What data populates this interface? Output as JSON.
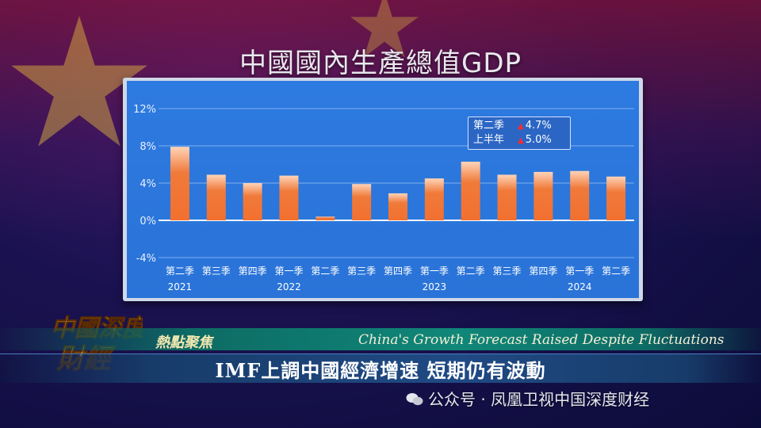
{
  "screen_title": "中國國內生產總值GDP",
  "legend": [
    {
      "label": "第二季",
      "value": "4.7%"
    },
    {
      "label": "上半年",
      "value": "5.0%"
    }
  ],
  "chart_data": {
    "type": "bar",
    "categories": [
      "第二季",
      "第三季",
      "第四季",
      "第一季",
      "第二季",
      "第三季",
      "第四季",
      "第一季",
      "第二季",
      "第三季",
      "第四季",
      "第一季",
      "第二季"
    ],
    "years": [
      {
        "label": "2021",
        "category_index": 0
      },
      {
        "label": "2022",
        "category_index": 3
      },
      {
        "label": "2023",
        "category_index": 7
      },
      {
        "label": "2024",
        "category_index": 11
      }
    ],
    "values": [
      7.9,
      4.9,
      4.0,
      4.8,
      0.4,
      3.9,
      2.9,
      4.5,
      6.3,
      4.9,
      5.2,
      5.3,
      4.7
    ],
    "yticks": [
      "12%",
      "8%",
      "4%",
      "0%",
      "-4%"
    ],
    "ylim": [
      -4,
      12
    ],
    "bar_color": "#f07a3a",
    "grid": true
  },
  "lower_band": {
    "tag": "熱點聚焦",
    "english": "China's Growth Forecast Raised Despite Fluctuations"
  },
  "headline": "IMF上調中國經濟增速  短期仍有波動",
  "logo_text": "中國深度財經",
  "watermark": "公众号 · 凤凰卫视中国深度财经"
}
